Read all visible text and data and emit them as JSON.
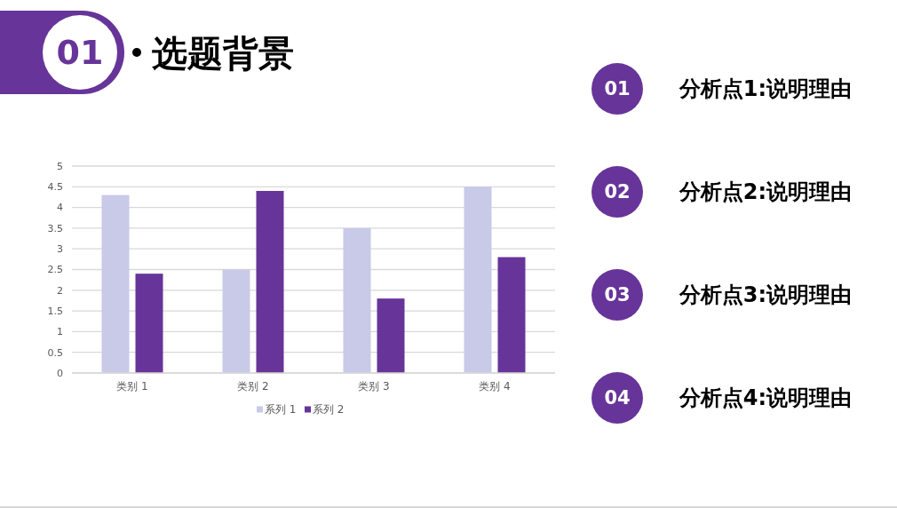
{
  "chart_data": {
    "type": "bar",
    "title": "选题背景",
    "categories": [
      "类别 1",
      "类别 2",
      "类别 3",
      "类别 4"
    ],
    "series": [
      {
        "name": "系列 1",
        "color": "#c9c9e8",
        "values": [
          4.3,
          2.5,
          3.5,
          4.5
        ]
      },
      {
        "name": "系列 2",
        "color": "#673499",
        "values": [
          2.4,
          4.4,
          1.8,
          2.8
        ]
      }
    ],
    "ylim": [
      0,
      5
    ],
    "yticks": [
      0,
      0.5,
      1,
      1.5,
      2,
      2.5,
      3,
      3.5,
      4,
      4.5,
      5
    ],
    "grid": "y",
    "legend": "bottom",
    "annotations": [
      "01",
      "01",
      "分析点1:说明理由",
      "02",
      "分析点2:说明理由",
      "03",
      "分析点3:说明理由",
      "04",
      "分析点4:说明理由"
    ]
  }
}
